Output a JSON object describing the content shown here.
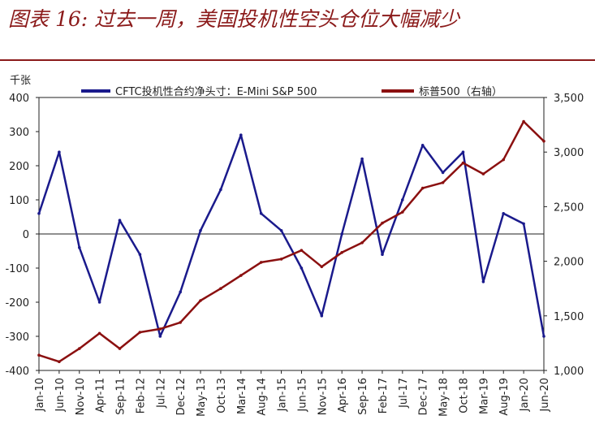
{
  "figure": {
    "title": "图表 16: 过去一周，美国投机性空头仓位大幅减少"
  },
  "colors": {
    "title": "#8b1a1a",
    "cftc": "#1a1a8c",
    "sp500": "#8b1010",
    "axis": "#222222"
  },
  "chart_data": {
    "type": "line",
    "unit_label_left": "千张",
    "x": [
      "Jan-10",
      "Jun-10",
      "Nov-10",
      "Apr-11",
      "Sep-11",
      "Feb-12",
      "Jul-12",
      "Dec-12",
      "May-13",
      "Oct-13",
      "Mar-14",
      "Aug-14",
      "Jan-15",
      "Jun-15",
      "Nov-15",
      "Apr-16",
      "Sep-16",
      "Feb-17",
      "Jul-17",
      "Dec-17",
      "May-18",
      "Oct-18",
      "Mar-19",
      "Aug-19",
      "Jan-20",
      "Jun-20"
    ],
    "xticks": [
      "Jan-10",
      "Jun-10",
      "Nov-10",
      "Apr-11",
      "Sep-11",
      "Feb-12",
      "Jul-12",
      "Dec-12",
      "May-13",
      "Oct-13",
      "Mar-14",
      "Aug-14",
      "Jan-15",
      "Jun-15",
      "Nov-15",
      "Apr-16",
      "Sep-16",
      "Feb-17",
      "Jul-17",
      "Dec-17",
      "May-18",
      "Oct-18",
      "Mar-19",
      "Aug-19",
      "Jan-20",
      "Jun-20"
    ],
    "y_left": {
      "min": -400,
      "max": 400,
      "ticks": [
        "400",
        "300",
        "200",
        "100",
        "0",
        "-100",
        "-200",
        "-300",
        "-400"
      ]
    },
    "y_right": {
      "min": 1000,
      "max": 3500,
      "ticks": [
        "3,500",
        "3,000",
        "2,500",
        "2,000",
        "1,500",
        "1,000"
      ]
    },
    "legend_position": "top",
    "series": [
      {
        "name": "CFTC投机性合约净头寸：E-Mini S&P 500",
        "axis": "left",
        "values": [
          60,
          240,
          -40,
          -200,
          40,
          -60,
          -300,
          -170,
          10,
          130,
          290,
          60,
          10,
          -100,
          -240,
          0,
          220,
          -60,
          100,
          260,
          180,
          240,
          -140,
          60,
          30,
          -300
        ]
      },
      {
        "name": "标普500（右轴）",
        "axis": "right",
        "values": [
          1140,
          1080,
          1200,
          1340,
          1200,
          1350,
          1380,
          1440,
          1640,
          1750,
          1870,
          1990,
          2020,
          2100,
          1950,
          2080,
          2170,
          2350,
          2450,
          2670,
          2720,
          2900,
          2800,
          2930,
          3280,
          3100
        ]
      }
    ]
  }
}
